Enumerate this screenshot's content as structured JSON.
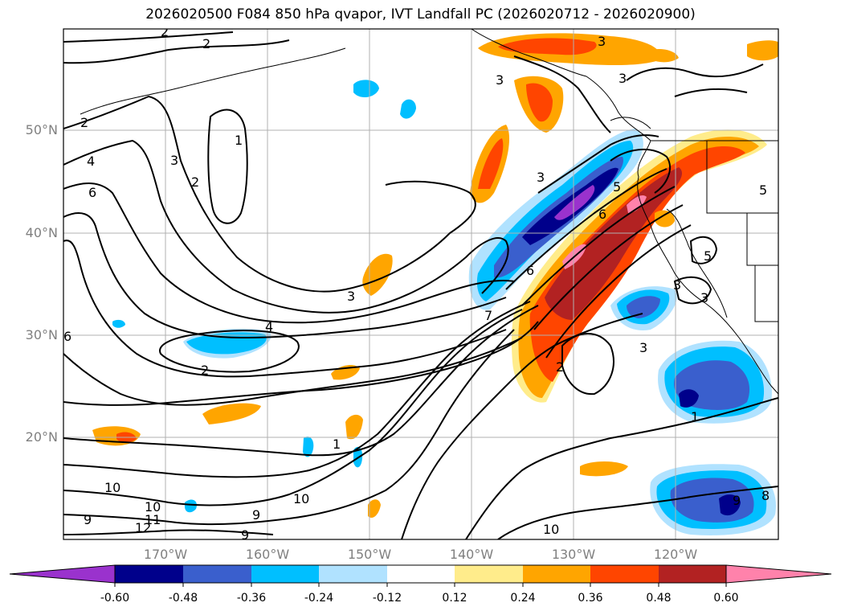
{
  "title": "2026020500 F084 850 hPa qvapor, IVT Landfall PC (2026020712 - 2026020900)",
  "map": {
    "lat_labels": [
      "50°N",
      "40°N",
      "30°N",
      "20°N"
    ],
    "lon_labels": [
      "170°W",
      "160°W",
      "150°W",
      "140°W",
      "130°W",
      "120°W"
    ],
    "contour_labels": [
      {
        "text": "2"
      },
      {
        "text": "2"
      },
      {
        "text": "2"
      },
      {
        "text": "1"
      },
      {
        "text": "3"
      },
      {
        "text": "2"
      },
      {
        "text": "4"
      },
      {
        "text": "6"
      },
      {
        "text": "3"
      },
      {
        "text": "4"
      },
      {
        "text": "2"
      },
      {
        "text": "6"
      },
      {
        "text": "3"
      },
      {
        "text": "3"
      },
      {
        "text": "3"
      },
      {
        "text": "3"
      },
      {
        "text": "5"
      },
      {
        "text": "6"
      },
      {
        "text": "6"
      },
      {
        "text": "7"
      },
      {
        "text": "2"
      },
      {
        "text": "1"
      },
      {
        "text": "3"
      },
      {
        "text": "3"
      },
      {
        "text": "5"
      },
      {
        "text": "3"
      },
      {
        "text": "1"
      },
      {
        "text": "8"
      },
      {
        "text": "9"
      },
      {
        "text": "10"
      },
      {
        "text": "10"
      },
      {
        "text": "10"
      },
      {
        "text": "11"
      },
      {
        "text": "12"
      },
      {
        "text": "9"
      },
      {
        "text": "9"
      },
      {
        "text": "9"
      },
      {
        "text": "10"
      },
      {
        "text": "5"
      }
    ]
  },
  "colorbar": {
    "ticks": [
      "-0.60",
      "-0.48",
      "-0.36",
      "-0.24",
      "-0.12",
      "0.12",
      "0.24",
      "0.36",
      "0.48",
      "0.60"
    ],
    "colors": [
      "#9a32cd",
      "#00008b",
      "#3a5fcd",
      "#00bfff",
      "#b0e2ff",
      "#ffffff",
      "#ffec8b",
      "#ffa500",
      "#ff4500",
      "#b22222",
      "#ff82ab"
    ]
  }
}
